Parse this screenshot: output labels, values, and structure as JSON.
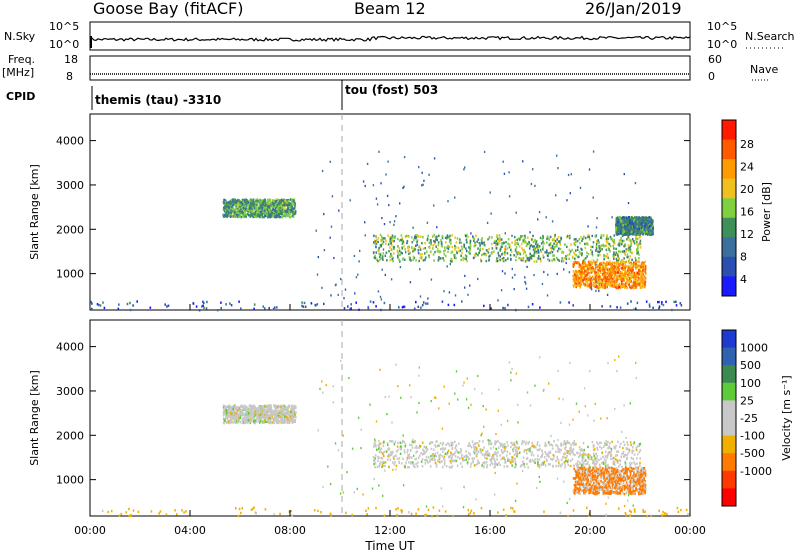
{
  "header": {
    "station": "Goose Bay (fitACF)",
    "beam": "Beam 12",
    "date": "26/Jan/2019"
  },
  "top_panels": {
    "nsky_label": "N.Sky",
    "nsky_ticks": [
      "10^5",
      "10^0"
    ],
    "nsearch_label": "N.Search",
    "nsearch_ticks": [
      "10^5",
      "10^0"
    ],
    "freq_label_1": "Freq.",
    "freq_label_2": "[MHz]",
    "freq_ticks": [
      "18",
      "8"
    ],
    "nave_label": "Nave",
    "nave_ticks": [
      "60",
      "0"
    ],
    "cpid_label": "CPID",
    "cpid_segments": [
      {
        "label": "themis (tau) -3310",
        "start_hour": 0
      },
      {
        "label": "tou (fost) 503",
        "start_hour": 10
      }
    ]
  },
  "colors": {
    "power_scale": [
      "#1a1aff",
      "#2a4fb0",
      "#3b6f9e",
      "#3e8f5a",
      "#7fcf3f",
      "#f0c020",
      "#ff9a00",
      "#ff5a00",
      "#ff1a00"
    ],
    "velocity_scale": [
      "#1f3ad0",
      "#2f63b0",
      "#3c8a50",
      "#5ecc3a",
      "#c8c8c8",
      "#c8c8c8",
      "#f0b000",
      "#ff7a00",
      "#ff3a00",
      "#ff0000"
    ]
  },
  "chart_data": [
    {
      "type": "heatmap",
      "name": "Power panel",
      "xlabel": "",
      "ylabel": "Slant Range [km]",
      "xlim_hours": [
        0,
        24
      ],
      "ylim": [
        180,
        4600
      ],
      "yticks": [
        "4000",
        "3000",
        "2000",
        "1000"
      ],
      "colorbar_label": "Power [dB]",
      "colorbar_ticks": [
        "28",
        "24",
        "20",
        "16",
        "12",
        "8",
        "4"
      ],
      "colorbar_range": [
        0,
        30
      ],
      "regions": [
        {
          "t": [
            5.3,
            8.2
          ],
          "r": [
            2300,
            2700
          ],
          "value": 12
        },
        {
          "t": [
            11.3,
            22.0
          ],
          "r": [
            1300,
            1900
          ],
          "value": 14
        },
        {
          "t": [
            19.3,
            22.2
          ],
          "r": [
            700,
            1300
          ],
          "value": 22
        },
        {
          "t": [
            0.0,
            24.0
          ],
          "r": [
            200,
            400
          ],
          "value": 6
        },
        {
          "t": [
            21.0,
            22.5
          ],
          "r": [
            1900,
            2300
          ],
          "value": 10
        }
      ]
    },
    {
      "type": "heatmap",
      "name": "Velocity panel",
      "xlabel": "Time UT",
      "ylabel": "Slant Range [km]",
      "xlim_hours": [
        0,
        24
      ],
      "ylim": [
        180,
        4600
      ],
      "yticks": [
        "4000",
        "3000",
        "2000",
        "1000"
      ],
      "xticks": [
        "00:00",
        "04:00",
        "08:00",
        "12:00",
        "16:00",
        "20:00",
        "00:00"
      ],
      "colorbar_label": "Velocity [m s⁻¹]",
      "colorbar_ticks": [
        "1000",
        "500",
        "100",
        "25",
        "-25",
        "-100",
        "-500",
        "-1000"
      ],
      "regions": [
        {
          "t": [
            5.3,
            8.2
          ],
          "r": [
            2300,
            2700
          ],
          "value": 0
        },
        {
          "t": [
            11.3,
            22.0
          ],
          "r": [
            1300,
            1900
          ],
          "value": 0
        },
        {
          "t": [
            19.3,
            22.2
          ],
          "r": [
            700,
            1300
          ],
          "value": -150
        },
        {
          "t": [
            0.0,
            24.0
          ],
          "r": [
            200,
            400
          ],
          "value": -50
        }
      ]
    }
  ]
}
